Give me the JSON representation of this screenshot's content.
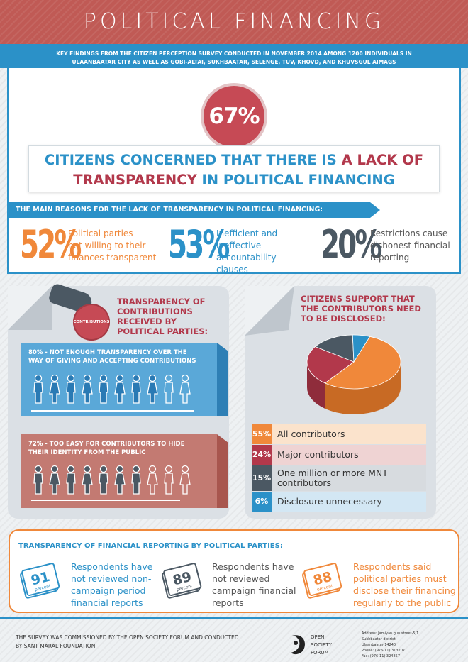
{
  "header": {
    "title": "POLITICAL FINANCING",
    "subtitle_line1": "KEY FINDINGS FROM THE CITIZEN PERCEPTION SURVEY CONDUCTED IN NOVEMBER 2014 AMONG 1200 INDIVIDUALS IN",
    "subtitle_line2": "ULAANBAATAR CITY AS WELL AS GOBI-ALTAI, SUKHBAATAR, SELENGE, TUV, KHOVD, AND KHUVSGUL AIMAGS"
  },
  "headline": {
    "percent": "67%",
    "line1_blue": "CITIZENS CONCERNED THAT THERE IS ",
    "line1_red": "A LACK OF",
    "line2_red": "TRANSPARENCY",
    "line2_blue": " IN POLITICAL FINANCING"
  },
  "reasons": {
    "title": "THE MAIN REASONS FOR THE LACK OF TRANSPARENCY IN POLITICAL FINANCING:",
    "items": [
      {
        "percent": "52%",
        "line1": "Political parties",
        "line2": "not willing to their",
        "line3": "finances transparent",
        "color": "#f0883a"
      },
      {
        "percent": "53%",
        "line1": "Inefficient and",
        "line2": "ineffective",
        "line3": "accountability clauses",
        "color": "#2b91c8"
      },
      {
        "percent": "20%",
        "line1": "Restrictions cause",
        "line2": "dishonest financial",
        "line3": "reporting",
        "color": "#4b5863"
      }
    ]
  },
  "contributions": {
    "coin_label": "CONTRIBUTIONS",
    "title_line1": "TRANSPARENCY OF",
    "title_line2": "CONTRIBUTIONS",
    "title_line3": "RECEIVED BY",
    "title_line4": "POLITICAL PARTIES:",
    "stat1_line1": "80% - NOT ENOUGH TRANSPARENCY OVER THE",
    "stat1_line2": "WAY OF GIVING AND ACCEPTING CONTRIBUTIONS",
    "stat1_filled_fraction": 0.8,
    "stat2_line1": "72% - TOO EASY FOR CONTRIBUTORS TO HIDE",
    "stat2_line2": "THEIR IDENTITY FROM THE PUBLIC",
    "stat2_filled_fraction": 0.72
  },
  "disclosure": {
    "title_line1": "CITIZENS SUPPORT THAT",
    "title_line2": "THE CONTRIBUTORS NEED",
    "title_line3": "TO BE DISCLOSED:",
    "items": [
      {
        "percent": "55%",
        "label": "All contributors",
        "color": "#f0883a",
        "bg": "#fbe3cc"
      },
      {
        "percent": "24%",
        "label": "Major contributors",
        "color": "#b2384b",
        "bg": "#efd3d3"
      },
      {
        "percent": "15%",
        "label": "One million or more MNT contributors",
        "color": "#4b5863",
        "bg": "#d7dbdf"
      },
      {
        "percent": "6%",
        "label": "Disclosure unnecessary",
        "color": "#2b91c8",
        "bg": "#d3e7f4"
      }
    ]
  },
  "reporting": {
    "title": "TRANSPARENCY OF FINANCIAL REPORTING BY POLITICAL PARTIES:",
    "items": [
      {
        "number": "91",
        "unit": "percent",
        "line1": "Respondents have",
        "line2": "not reviewed non-",
        "line3": "campaign period",
        "line4": "financial reports",
        "color": "#2b91c8"
      },
      {
        "number": "89",
        "unit": "percent",
        "line1": "Respondents have",
        "line2": "not reviewed",
        "line3": "campaign financial",
        "line4": "reports",
        "color": "#4b5863"
      },
      {
        "number": "88",
        "unit": "percent",
        "line1": "Respondents said",
        "line2": "political parties must",
        "line3": "disclose their financing",
        "line4": "regularly to the public",
        "color": "#f0883a"
      }
    ]
  },
  "footer": {
    "line1": "THE SURVEY WAS COMMISSIONED BY THE OPEN SOCIETY FORUM AND CONDUCTED",
    "line2": "BY SANT MARAL FOUNDATION.",
    "org_line1": "OPEN",
    "org_line2": "SOCIETY",
    "org_line3": "FORUM",
    "addr1": "Address: Jamiyan gun street-5/1",
    "addr2": "Sukhbaatar district",
    "addr3": "Ulaanbaatar-14240",
    "addr4": "Phone: (976-11) 313207",
    "addr5": "Fax: (976-11) 324857"
  }
}
